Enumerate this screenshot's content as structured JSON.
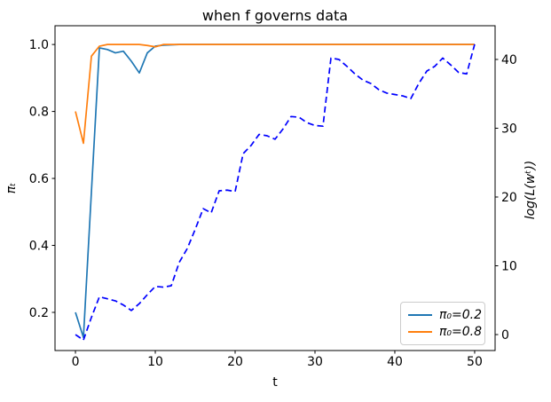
{
  "chart_data": {
    "type": "line",
    "title": "when f governs data",
    "xlabel": "t",
    "ylabel_left": "πₜ",
    "ylabel_right": "log(L(wᵗ))",
    "grid": false,
    "xlim": [
      -2.56,
      52.56
    ],
    "ylim_left": [
      0.086,
      1.056
    ],
    "ylim_right": [
      -2.32,
      44.9
    ],
    "x_ticks": [
      0,
      10,
      20,
      30,
      40,
      50
    ],
    "x_tick_labels": [
      "0",
      "10",
      "20",
      "30",
      "40",
      "50"
    ],
    "y_ticks_left": [
      0.2,
      0.4,
      0.6,
      0.8,
      1.0
    ],
    "y_tick_labels_left": [
      "0.2",
      "0.4",
      "0.6",
      "0.8",
      "1.0"
    ],
    "y_ticks_right": [
      0,
      10,
      20,
      30,
      40
    ],
    "y_tick_labels_right": [
      "0",
      "10",
      "20",
      "30",
      "40"
    ],
    "legend": {
      "position": "lower right",
      "entries": [
        {
          "label": "π₀=0.2",
          "color": "#1f77b4",
          "style": "solid"
        },
        {
          "label": "π₀=0.8",
          "color": "#ff7f0e",
          "style": "solid"
        }
      ]
    },
    "x": [
      0,
      1,
      2,
      3,
      4,
      5,
      6,
      7,
      8,
      9,
      10,
      11,
      12,
      13,
      14,
      15,
      16,
      17,
      18,
      19,
      20,
      21,
      22,
      23,
      24,
      25,
      26,
      27,
      28,
      29,
      30,
      31,
      32,
      33,
      34,
      35,
      36,
      37,
      38,
      39,
      40,
      41,
      42,
      43,
      44,
      45,
      46,
      47,
      48,
      49,
      50
    ],
    "series": [
      {
        "name": "pi_t from pi0=0.2",
        "axis": "left",
        "color": "#1f77b4",
        "style": "solid",
        "y": [
          0.2,
          0.125,
          0.56,
          0.99,
          0.985,
          0.975,
          0.98,
          0.95,
          0.915,
          0.975,
          0.995,
          0.998,
          0.999,
          1.0,
          1.0,
          1.0,
          1.0,
          1.0,
          1.0,
          1.0,
          1.0,
          1.0,
          1.0,
          1.0,
          1.0,
          1.0,
          1.0,
          1.0,
          1.0,
          1.0,
          1.0,
          1.0,
          1.0,
          1.0,
          1.0,
          1.0,
          1.0,
          1.0,
          1.0,
          1.0,
          1.0,
          1.0,
          1.0,
          1.0,
          1.0,
          1.0,
          1.0,
          1.0,
          1.0,
          1.0,
          1.0
        ]
      },
      {
        "name": "pi_t from pi0=0.8",
        "axis": "left",
        "color": "#ff7f0e",
        "style": "solid",
        "y": [
          0.8,
          0.705,
          0.965,
          0.995,
          1.0,
          1.0,
          1.0,
          1.0,
          1.0,
          0.997,
          0.993,
          1.0,
          1.0,
          1.0,
          1.0,
          1.0,
          1.0,
          1.0,
          1.0,
          1.0,
          1.0,
          1.0,
          1.0,
          1.0,
          1.0,
          1.0,
          1.0,
          1.0,
          1.0,
          1.0,
          1.0,
          1.0,
          1.0,
          1.0,
          1.0,
          1.0,
          1.0,
          1.0,
          1.0,
          1.0,
          1.0,
          1.0,
          1.0,
          1.0,
          1.0,
          1.0,
          1.0,
          1.0,
          1.0,
          1.0,
          1.0
        ]
      },
      {
        "name": "log-likelihood",
        "axis": "right",
        "color": "#0000ff",
        "style": "dashed",
        "y": [
          0.0,
          -0.8,
          2.5,
          5.5,
          5.2,
          4.9,
          4.3,
          3.5,
          4.5,
          5.8,
          7.0,
          6.9,
          7.1,
          10.5,
          12.5,
          15.3,
          18.3,
          17.7,
          20.9,
          21.0,
          20.8,
          26.3,
          27.5,
          29.1,
          28.9,
          28.4,
          29.9,
          31.7,
          31.6,
          30.8,
          30.4,
          30.3,
          40.2,
          40.0,
          39.0,
          37.9,
          37.0,
          36.5,
          35.6,
          35.1,
          34.9,
          34.7,
          34.3,
          36.5,
          38.3,
          39.0,
          40.2,
          39.2,
          38.1,
          37.9,
          42.2
        ]
      }
    ]
  }
}
